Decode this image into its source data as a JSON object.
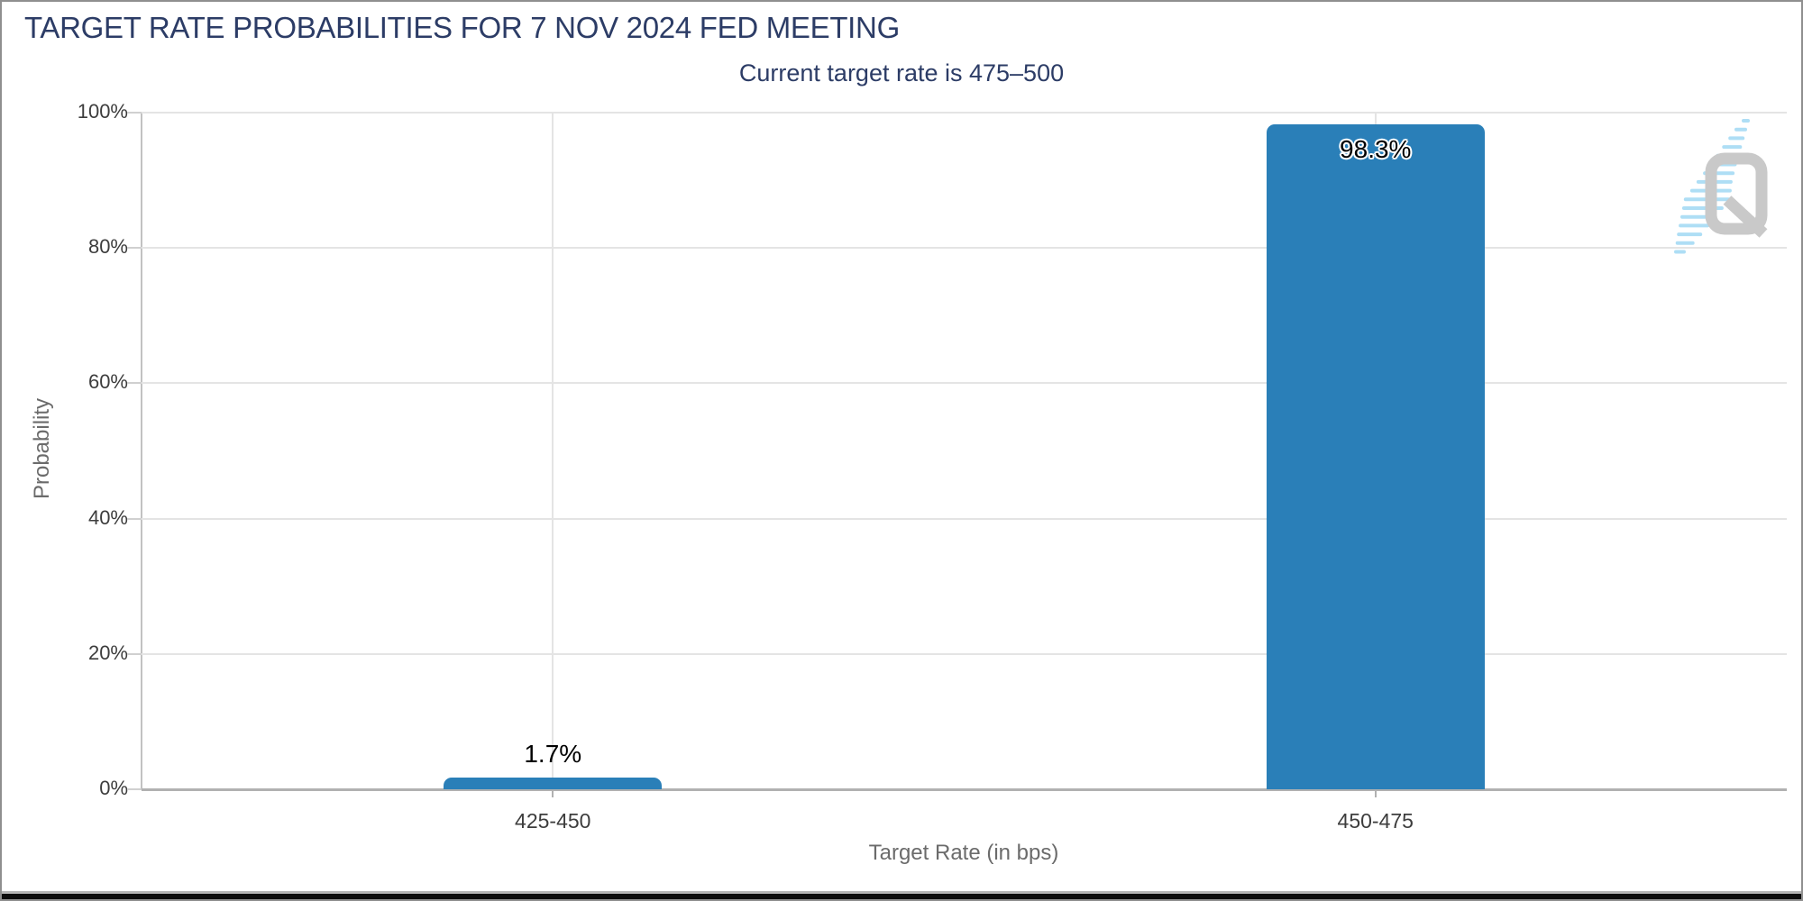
{
  "chart_data": {
    "type": "bar",
    "title": "TARGET RATE PROBABILITIES FOR 7 NOV 2024 FED MEETING",
    "subtitle": "Current target rate is 475–500",
    "xlabel": "Target Rate (in bps)",
    "ylabel": "Probability",
    "categories": [
      "425-450",
      "450-475"
    ],
    "series": [
      {
        "name": "Probability",
        "values": [
          1.7,
          98.3
        ]
      }
    ],
    "value_labels": [
      "1.7%",
      "98.3%"
    ],
    "ylim": [
      0,
      100
    ],
    "ytick_labels": [
      "0%",
      "20%",
      "40%",
      "60%",
      "80%",
      "100%"
    ],
    "grid": true,
    "legend": "none",
    "bar_color": "#2a7fb8"
  },
  "watermark": {
    "letter": "Q"
  },
  "colors": {
    "title_navy": "#2c3c66",
    "bar_blue": "#2a7fb8",
    "watermark_gray": "#c9c9c9",
    "swoosh_blue": "#a6dbf5",
    "gridline": "#e4e4e4",
    "axis_line": "#b1b1b1",
    "tick_text": "#3d3d3d",
    "axis_title_text": "#6b6b6b"
  }
}
